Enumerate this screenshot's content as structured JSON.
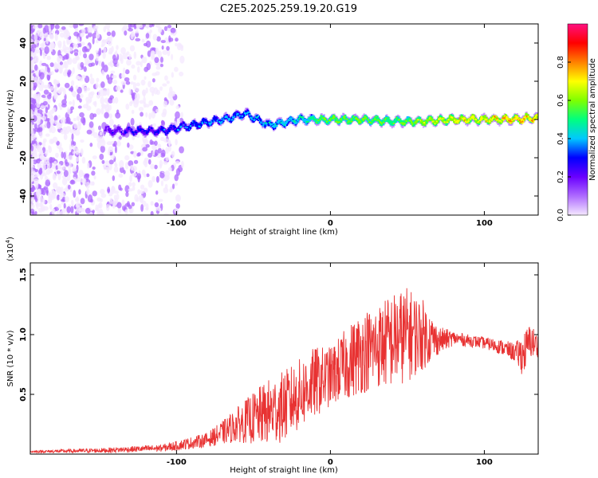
{
  "title": "C2E5.2025.259.19.20.G19",
  "chart_data": [
    {
      "type": "heatmap",
      "name": "spectrogram",
      "xlabel": "Height of straight line (km)",
      "ylabel": "Frequency (Hz)",
      "xlim": [
        -195,
        135
      ],
      "ylim": [
        -50,
        50
      ],
      "xticks": [
        -100,
        0,
        100
      ],
      "xtick_labels": [
        "-100",
        "0",
        "100"
      ],
      "yticks": [
        -40,
        -20,
        0,
        20,
        40
      ],
      "ytick_labels": [
        "-40",
        "-20",
        "0",
        "20",
        "40"
      ],
      "colorbar": {
        "label": "Normalized spectral amplitude",
        "range": [
          0,
          1
        ],
        "ticks": [
          0.0,
          0.2,
          0.4,
          0.6,
          0.8
        ],
        "tick_labels": [
          "0.0",
          "0.2",
          "0.4",
          "0.6",
          "0.8"
        ],
        "colors": [
          "#f4e8ff",
          "#ae6aff",
          "#6a00ff",
          "#0000ff",
          "#00c8ff",
          "#00ff7f",
          "#7fff00",
          "#ffff00",
          "#ff8000",
          "#ff0000",
          "#ff1080"
        ]
      },
      "signal_track": [
        {
          "x": -145,
          "y": -6,
          "amp": 0.3
        },
        {
          "x": -125,
          "y": -6,
          "amp": 0.35
        },
        {
          "x": -110,
          "y": -6,
          "amp": 0.4
        },
        {
          "x": -90,
          "y": -3,
          "amp": 0.45
        },
        {
          "x": -70,
          "y": 0,
          "amp": 0.5
        },
        {
          "x": -55,
          "y": 3,
          "amp": 0.5
        },
        {
          "x": -40,
          "y": -3,
          "amp": 0.55
        },
        {
          "x": -20,
          "y": 0,
          "amp": 0.6
        },
        {
          "x": 0,
          "y": 0,
          "amp": 0.75
        },
        {
          "x": 20,
          "y": 0,
          "amp": 0.75
        },
        {
          "x": 40,
          "y": -1,
          "amp": 0.7
        },
        {
          "x": 60,
          "y": -1,
          "amp": 0.8
        },
        {
          "x": 80,
          "y": 0,
          "amp": 0.9
        },
        {
          "x": 100,
          "y": 0,
          "amp": 0.9
        },
        {
          "x": 120,
          "y": 0,
          "amp": 0.95
        },
        {
          "x": 135,
          "y": 1,
          "amp": 0.95
        }
      ]
    },
    {
      "type": "line",
      "name": "snr",
      "xlabel": "Height of straight line (km)",
      "ylabel": "SNR (10 * v/v)",
      "yscale_label": "(x10",
      "yscale_exponent": "4",
      "xlim": [
        -195,
        135
      ],
      "ylim": [
        0,
        1.6
      ],
      "xticks": [
        -100,
        0,
        100
      ],
      "xtick_labels": [
        "-100",
        "0",
        "100"
      ],
      "yticks": [
        0.5,
        1.0,
        1.5
      ],
      "ytick_labels": [
        "0.5",
        "1.0",
        "1.5"
      ],
      "color": "#e83232",
      "envelope": {
        "x": [
          -195,
          -150,
          -110,
          -100,
          -80,
          -70,
          -60,
          -50,
          -40,
          -30,
          -20,
          -10,
          0,
          10,
          20,
          30,
          40,
          50,
          60,
          70,
          80,
          90,
          100,
          110,
          120,
          125,
          130,
          135
        ],
        "y": [
          0.02,
          0.03,
          0.05,
          0.07,
          0.12,
          0.18,
          0.25,
          0.3,
          0.35,
          0.4,
          0.5,
          0.6,
          0.65,
          0.75,
          0.85,
          0.9,
          0.95,
          1.0,
          1.0,
          0.95,
          0.97,
          0.95,
          0.93,
          0.9,
          0.85,
          0.83,
          0.95,
          0.9
        ],
        "amp": [
          0.01,
          0.02,
          0.03,
          0.04,
          0.06,
          0.1,
          0.15,
          0.22,
          0.28,
          0.3,
          0.3,
          0.3,
          0.25,
          0.3,
          0.35,
          0.35,
          0.4,
          0.4,
          0.3,
          0.12,
          0.06,
          0.05,
          0.05,
          0.06,
          0.08,
          0.18,
          0.15,
          0.1
        ]
      }
    }
  ]
}
